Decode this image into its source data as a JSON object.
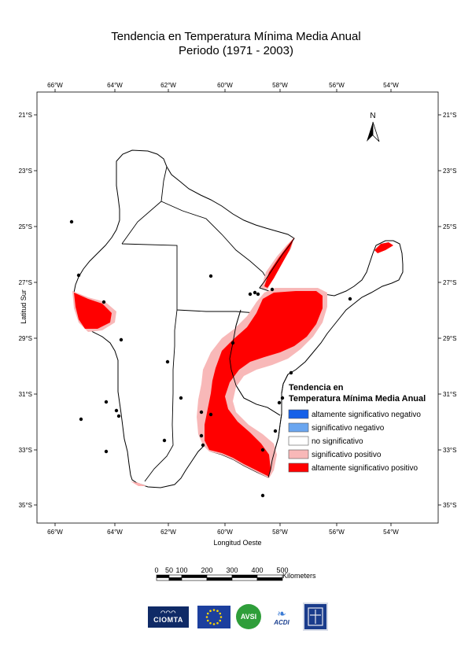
{
  "title_line1": "Tendencia en Temperatura Mínima Media Anual",
  "title_line2": "Periodo  (1971 - 2003)",
  "axes": {
    "x_label": "Longitud Oeste",
    "y_label": "Latitud Sur",
    "lon_ticks": [
      "66°W",
      "64°W",
      "62°W",
      "60°W",
      "58°W",
      "56°W",
      "54°W"
    ],
    "lat_ticks": [
      "21°S",
      "23°S",
      "25°S",
      "27°S",
      "29°S",
      "31°S",
      "33°S",
      "35°S"
    ]
  },
  "north_arrow": "N",
  "legend": {
    "title_line1": "Tendencia en",
    "title_line2": "Temperatura Mínima Media Anual",
    "items": [
      {
        "label": "altamente significativo negativo",
        "color": "#1560e8"
      },
      {
        "label": "significativo negativo",
        "color": "#6aa6f0"
      },
      {
        "label": "no significativo",
        "color": "#ffffff"
      },
      {
        "label": "significativo positivo",
        "color": "#f8b8b8"
      },
      {
        "label": "altamente significativo positivo",
        "color": "#ff0000"
      }
    ]
  },
  "scale_bar": {
    "labels": [
      "0",
      "50",
      "100",
      "200",
      "300",
      "400",
      "500"
    ],
    "unit": "Kilometers"
  },
  "logos": {
    "ciomta": "CIOMTA",
    "avsi": "AVSI",
    "acdi": "ACDI"
  }
}
